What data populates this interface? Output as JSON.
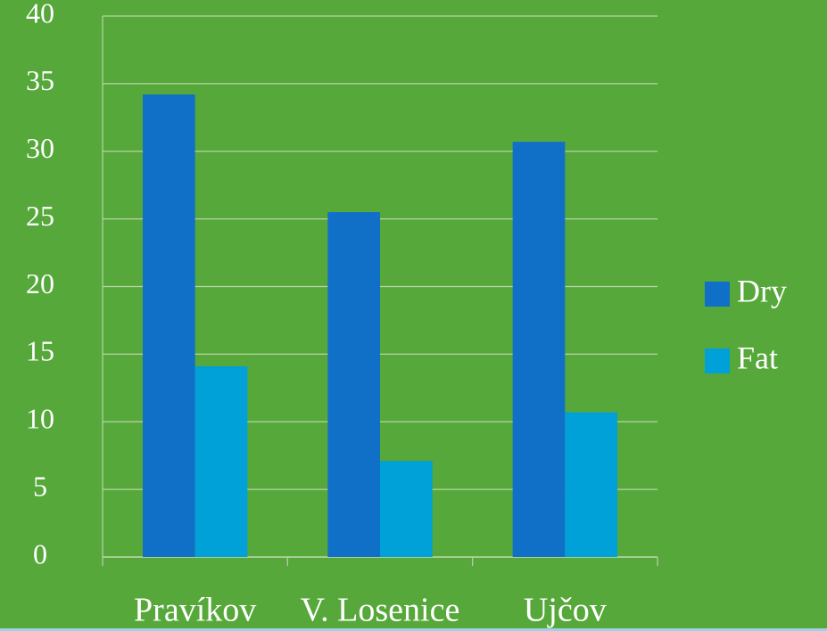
{
  "chart_data": {
    "type": "bar",
    "categories": [
      "Pravíkov",
      "V. Losenice",
      "Ujčov"
    ],
    "series": [
      {
        "name": "Dry",
        "color": "#1070c8",
        "values": [
          34.2,
          25.5,
          30.7
        ]
      },
      {
        "name": "Fat",
        "color": "#00a0d8",
        "values": [
          14.1,
          7.1,
          10.7
        ]
      }
    ],
    "ylim": [
      0,
      40
    ],
    "yticks": [
      0,
      5,
      10,
      15,
      20,
      25,
      30,
      35,
      40
    ],
    "grid": true,
    "legend": "right"
  }
}
